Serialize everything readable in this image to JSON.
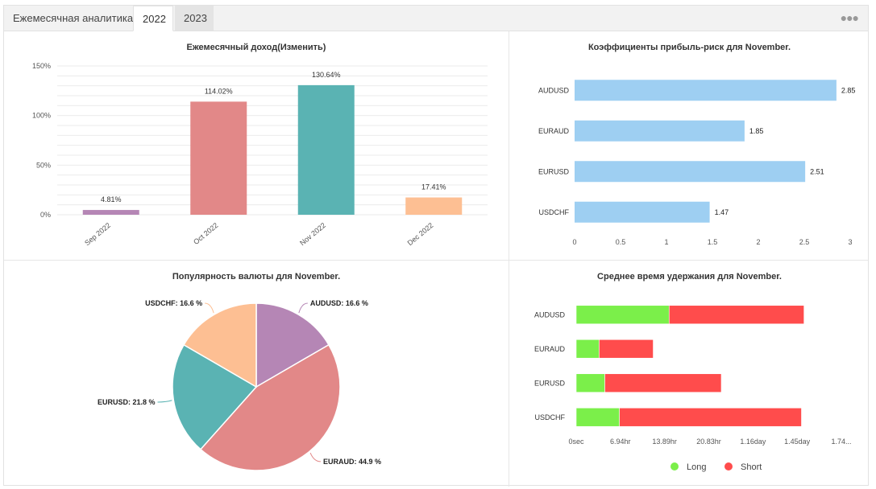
{
  "tabs": {
    "title": "Ежемесячная аналитика",
    "items": [
      "2022",
      "2023"
    ],
    "active": "2022",
    "menu_icon": "more-dots-icon"
  },
  "chart_data": [
    {
      "type": "bar",
      "title": "Ежемесячный доход(Изменить)",
      "categories": [
        "Sep 2022",
        "Oct 2022",
        "Nov 2022",
        "Dec 2022"
      ],
      "values": [
        4.81,
        114.02,
        130.64,
        17.41
      ],
      "labels": [
        "4.81%",
        "114.02%",
        "130.64%",
        "17.41%"
      ],
      "colors": [
        "#b586b5",
        "#e28888",
        "#5ab3b3",
        "#fdbf93"
      ],
      "yticks": [
        "0%",
        "50%",
        "100%",
        "150%"
      ],
      "ylim": [
        0,
        150
      ],
      "grid": true
    },
    {
      "type": "bar",
      "orientation": "horizontal",
      "title": "Коэффициенты прибыль-риск для November.",
      "categories": [
        "AUDUSD",
        "EURAUD",
        "EURUSD",
        "USDCHF"
      ],
      "values": [
        2.85,
        1.85,
        2.51,
        1.47
      ],
      "labels": [
        "2.85",
        "1.85",
        "2.51",
        "1.47"
      ],
      "color": "#9ecff2",
      "xticks": [
        "0",
        "0.5",
        "1",
        "1.5",
        "2",
        "2.5",
        "3"
      ],
      "xlim": [
        0,
        3
      ]
    },
    {
      "type": "pie",
      "title": "Популярность валюты для November.",
      "slices": [
        {
          "name": "AUDUSD",
          "value": 16.6,
          "label": "AUDUSD: 16.6 %",
          "color": "#b586b5"
        },
        {
          "name": "EURAUD",
          "value": 44.9,
          "label": "EURAUD: 44.9 %",
          "color": "#e28888"
        },
        {
          "name": "EURUSD",
          "value": 21.8,
          "label": "EURUSD: 21.8 %",
          "color": "#5ab3b3"
        },
        {
          "name": "USDCHF",
          "value": 16.6,
          "label": "USDCHF: 16.6 %",
          "color": "#fdbf93"
        }
      ]
    },
    {
      "type": "bar",
      "orientation": "horizontal",
      "stacked": true,
      "title": "Среднее время удержания для November.",
      "categories": [
        "AUDUSD",
        "EURAUD",
        "EURUSD",
        "USDCHF"
      ],
      "x_unit": "hours",
      "series": [
        {
          "name": "Long",
          "color": "#7bef4a",
          "values": [
            14.6,
            3.6,
            4.5,
            6.8
          ]
        },
        {
          "name": "Short",
          "color": "#ff4c4c",
          "values": [
            21.2,
            8.5,
            18.3,
            28.6
          ]
        }
      ],
      "xticks": [
        "0sec",
        "6.94hr",
        "13.89hr",
        "20.83hr",
        "1.16day",
        "1.45day",
        "1.74..."
      ],
      "xtick_values": [
        0,
        6.94,
        13.89,
        20.83,
        27.78,
        34.72,
        41.67
      ],
      "xlim": [
        0,
        41.67
      ],
      "legend": "bottom"
    }
  ]
}
